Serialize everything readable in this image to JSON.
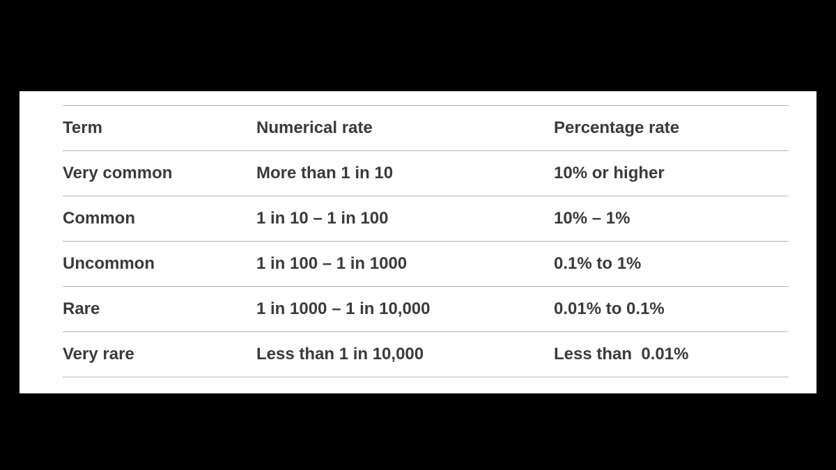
{
  "table": {
    "headers": {
      "term": "Term",
      "numerical_rate": "Numerical rate",
      "percentage_rate": "Percentage rate"
    },
    "rows": [
      {
        "term": "Very common",
        "numerical_rate": "More than 1 in 10",
        "percentage_rate": "10% or higher"
      },
      {
        "term": "Common",
        "numerical_rate": "1 in 10 – 1 in 100",
        "percentage_rate": "10% – 1%"
      },
      {
        "term": "Uncommon",
        "numerical_rate": "1 in 100 – 1 in 1000",
        "percentage_rate": "0.1% to 1%"
      },
      {
        "term": "Rare",
        "numerical_rate": "1 in 1000 – 1 in 10,000",
        "percentage_rate": "0.01% to 0.1%"
      },
      {
        "term": "Very rare",
        "numerical_rate": "Less than 1 in 10,000",
        "percentage_rate": "Less than  0.01%"
      }
    ]
  }
}
